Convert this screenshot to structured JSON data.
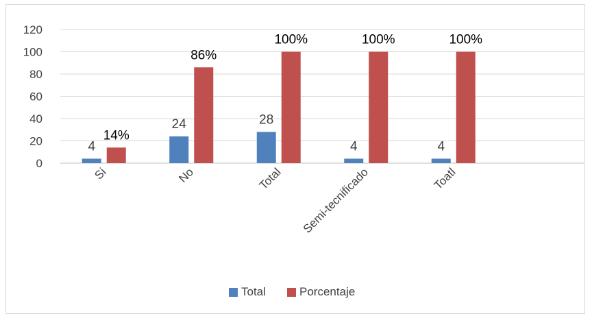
{
  "chart_data": {
    "type": "bar",
    "categories": [
      "Si",
      "No",
      "Total",
      "Semi-tecnificado",
      "Toatl"
    ],
    "series": [
      {
        "name": "Total",
        "values": [
          4,
          24,
          28,
          4,
          4
        ],
        "labels": [
          "4",
          "24",
          "28",
          "4",
          "4"
        ],
        "color": "#4F81BD"
      },
      {
        "name": "Porcentaje",
        "values": [
          14,
          86,
          100,
          100,
          100
        ],
        "labels": [
          "14%",
          "86%",
          "100%",
          "100%",
          "100%"
        ],
        "color": "#C0504D"
      }
    ],
    "y_ticks": [
      "0",
      "20",
      "40",
      "60",
      "80",
      "100",
      "120"
    ],
    "ylim": [
      0,
      120
    ],
    "grid": true,
    "legend_position": "bottom"
  }
}
